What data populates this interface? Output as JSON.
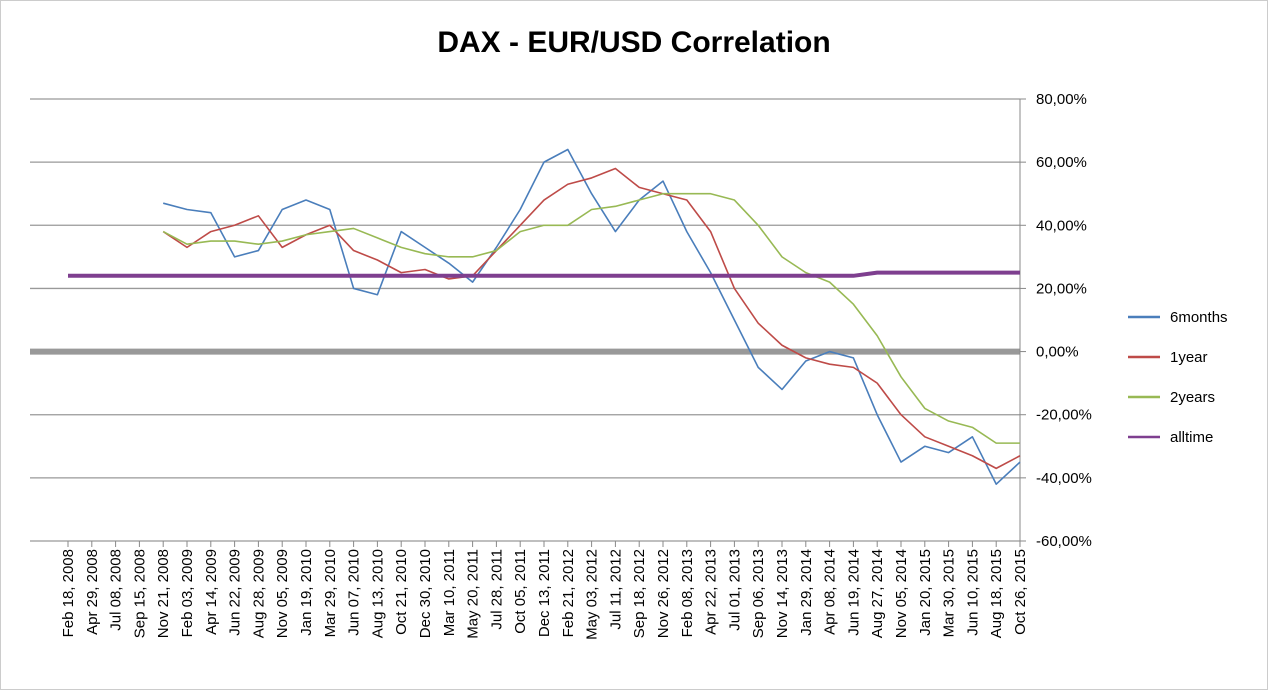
{
  "chart_data": {
    "type": "line",
    "title": "DAX - EUR/USD Correlation",
    "x": [
      "Feb 18, 2008",
      "Apr 29, 2008",
      "Jul 08, 2008",
      "Sep 15, 2008",
      "Nov 21, 2008",
      "Feb 03, 2009",
      "Apr 14, 2009",
      "Jun 22, 2009",
      "Aug 28, 2009",
      "Nov 05, 2009",
      "Jan 19, 2010",
      "Mar 29, 2010",
      "Jun 07, 2010",
      "Aug 13, 2010",
      "Oct 21, 2010",
      "Dec 30, 2010",
      "Mar 10, 2011",
      "May 20, 2011",
      "Jul 28, 2011",
      "Oct 05, 2011",
      "Dec 13, 2011",
      "Feb 21, 2012",
      "May 03, 2012",
      "Jul 11, 2012",
      "Sep 18, 2012",
      "Nov 26, 2012",
      "Feb 08, 2013",
      "Apr 22, 2013",
      "Jul 01, 2013",
      "Sep 06, 2013",
      "Nov 14, 2013",
      "Jan 29, 2014",
      "Apr 08, 2014",
      "Jun 19, 2014",
      "Aug 27, 2014",
      "Nov 05, 2014",
      "Jan 20, 2015",
      "Mar 30, 2015",
      "Jun 10, 2015",
      "Aug 18, 2015",
      "Oct 26, 2015"
    ],
    "series": [
      {
        "name": "6months",
        "color": "#4a7ebb",
        "values": [
          null,
          null,
          null,
          null,
          47,
          45,
          44,
          30,
          32,
          45,
          48,
          45,
          20,
          18,
          38,
          33,
          28,
          22,
          33,
          45,
          60,
          64,
          50,
          38,
          48,
          54,
          38,
          25,
          10,
          -5,
          -12,
          -3,
          0,
          -2,
          -20,
          -35,
          -30,
          -32,
          -27,
          -42,
          -35
        ]
      },
      {
        "name": "1year",
        "color": "#be4b48",
        "values": [
          null,
          null,
          null,
          null,
          38,
          33,
          38,
          40,
          43,
          33,
          37,
          40,
          32,
          29,
          25,
          26,
          23,
          24,
          32,
          40,
          48,
          53,
          55,
          58,
          52,
          50,
          48,
          38,
          20,
          9,
          2,
          -2,
          -4,
          -5,
          -10,
          -20,
          -27,
          -30,
          -33,
          -37,
          -33
        ]
      },
      {
        "name": "2years",
        "color": "#98b954",
        "values": [
          null,
          null,
          null,
          null,
          38,
          34,
          35,
          35,
          34,
          35,
          37,
          38,
          39,
          36,
          33,
          31,
          30,
          30,
          32,
          38,
          40,
          40,
          45,
          46,
          48,
          50,
          50,
          50,
          48,
          40,
          30,
          25,
          22,
          15,
          5,
          -8,
          -18,
          -22,
          -24,
          -29,
          -29
        ]
      },
      {
        "name": "alltime",
        "color": "#7e3f8f",
        "values": [
          24,
          24,
          24,
          24,
          24,
          24,
          24,
          24,
          24,
          24,
          24,
          24,
          24,
          24,
          24,
          24,
          24,
          24,
          24,
          24,
          24,
          24,
          24,
          24,
          24,
          24,
          24,
          24,
          24,
          24,
          24,
          24,
          24,
          24,
          25,
          25,
          25,
          25,
          25,
          25,
          25
        ]
      }
    ],
    "ylim": [
      -60,
      80
    ],
    "yticks": [
      {
        "value": -60,
        "label": "-60,00%"
      },
      {
        "value": -40,
        "label": "-40,00%"
      },
      {
        "value": -20,
        "label": "-20,00%"
      },
      {
        "value": 0,
        "label": "0,00%"
      },
      {
        "value": 20,
        "label": "20,00%"
      },
      {
        "value": 40,
        "label": "40,00%"
      },
      {
        "value": 60,
        "label": "60,00%"
      },
      {
        "value": 80,
        "label": "80,00%"
      }
    ],
    "grid": true,
    "legend": "right"
  }
}
